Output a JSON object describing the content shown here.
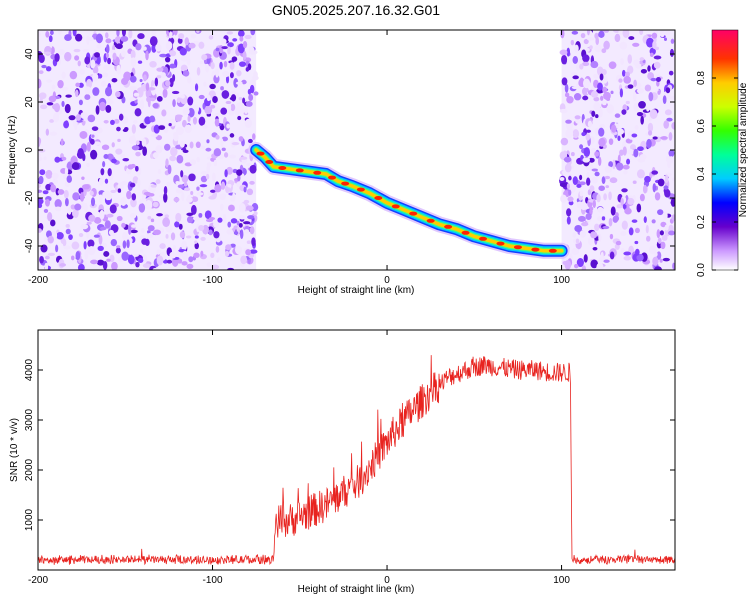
{
  "figure": {
    "title": "GN05.2025.207.16.32.G01"
  },
  "chart_data": [
    {
      "type": "heatmap",
      "xlabel": "Height of straight line (km)",
      "ylabel": "Frequency (Hz)",
      "xlim": [
        -200,
        165
      ],
      "ylim": [
        -50,
        50
      ],
      "xticks": [
        -200,
        -100,
        0,
        100
      ],
      "yticks": [
        -40,
        -20,
        0,
        20,
        40
      ],
      "noise_regions": [
        [
          -200,
          -75
        ],
        [
          100,
          165
        ]
      ],
      "track": [
        {
          "x": -75,
          "y": 0
        },
        {
          "x": -70,
          "y": -3
        },
        {
          "x": -65,
          "y": -7
        },
        {
          "x": -55,
          "y": -8
        },
        {
          "x": -45,
          "y": -9
        },
        {
          "x": -35,
          "y": -10
        },
        {
          "x": -28,
          "y": -13
        },
        {
          "x": -20,
          "y": -15
        },
        {
          "x": -10,
          "y": -18
        },
        {
          "x": 0,
          "y": -22
        },
        {
          "x": 10,
          "y": -25
        },
        {
          "x": 20,
          "y": -28
        },
        {
          "x": 30,
          "y": -31
        },
        {
          "x": 40,
          "y": -33
        },
        {
          "x": 50,
          "y": -36
        },
        {
          "x": 60,
          "y": -38
        },
        {
          "x": 70,
          "y": -40
        },
        {
          "x": 80,
          "y": -41
        },
        {
          "x": 90,
          "y": -42
        },
        {
          "x": 100,
          "y": -42
        }
      ],
      "colorbar": {
        "label": "Normalized spectral amplitude",
        "ticks": [
          0.0,
          0.2,
          0.4,
          0.6,
          0.8
        ],
        "tick_labels": [
          "0.0",
          "0.2",
          "0.4",
          "0.6",
          "0.8"
        ],
        "range": [
          0,
          1
        ]
      }
    },
    {
      "type": "line",
      "xlabel": "Height of straight line (km)",
      "ylabel": "SNR (10 * v/v)",
      "xlim": [
        -200,
        165
      ],
      "ylim": [
        0,
        4800
      ],
      "xticks": [
        -200,
        -100,
        0,
        100
      ],
      "yticks": [
        1000,
        2000,
        3000,
        4000
      ],
      "series": [
        {
          "color": "#e8231f",
          "x": [
            -200,
            -150,
            -100,
            -65,
            -64,
            -55,
            -45,
            -35,
            -25,
            -15,
            -5,
            5,
            15,
            25,
            35,
            45,
            55,
            65,
            75,
            85,
            95,
            105,
            106,
            110,
            130,
            150,
            165
          ],
          "y": [
            200,
            210,
            200,
            210,
            950,
            1000,
            1150,
            1300,
            1550,
            1800,
            2300,
            2800,
            3200,
            3550,
            3850,
            4000,
            4100,
            4050,
            4000,
            4000,
            3950,
            3950,
            200,
            200,
            210,
            200,
            210
          ]
        }
      ]
    }
  ]
}
